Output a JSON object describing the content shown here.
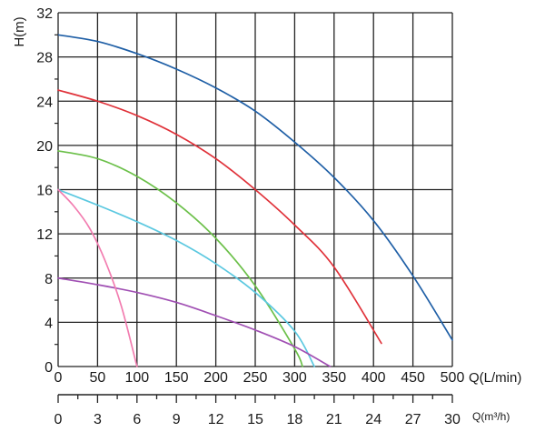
{
  "chart_data": {
    "type": "line",
    "title": "",
    "ylabel": "H(m)",
    "xlabel": "Q(L/min)",
    "x2label": "Q(m³/h)",
    "ylim": [
      0,
      32
    ],
    "xlim": [
      0,
      500
    ],
    "x2lim": [
      0,
      30
    ],
    "grid": true,
    "y_ticks": [
      "0",
      "4",
      "8",
      "12",
      "16",
      "20",
      "24",
      "28",
      "32"
    ],
    "x_ticks": [
      "0",
      "50",
      "100",
      "150",
      "200",
      "250",
      "300",
      "350",
      "400",
      "450",
      "500"
    ],
    "x2_ticks": [
      "0",
      "3",
      "6",
      "9",
      "12",
      "15",
      "18",
      "21",
      "24",
      "27",
      "30"
    ],
    "series": [
      {
        "color": "#1f5fa6",
        "x": [
          0,
          50,
          100,
          150,
          200,
          250,
          300,
          350,
          400,
          450,
          500
        ],
        "y": [
          30,
          29.4,
          28.3,
          26.9,
          25.2,
          23.1,
          20.3,
          17.1,
          13.2,
          8.2,
          2.4
        ]
      },
      {
        "color": "#e0323a",
        "x": [
          0,
          50,
          100,
          150,
          200,
          250,
          300,
          350,
          410
        ],
        "y": [
          25,
          24,
          22.7,
          21,
          18.8,
          16,
          12.8,
          9,
          2.1
        ]
      },
      {
        "color": "#6cc04a",
        "x": [
          0,
          50,
          100,
          150,
          200,
          250,
          300,
          310
        ],
        "y": [
          19.5,
          18.8,
          17.2,
          14.8,
          11.6,
          7.3,
          1.6,
          0
        ]
      },
      {
        "color": "#5bc8e0",
        "x": [
          0,
          50,
          100,
          150,
          200,
          250,
          300,
          325
        ],
        "y": [
          16,
          14.6,
          13.1,
          11.4,
          9.3,
          6.7,
          3.2,
          0
        ]
      },
      {
        "color": "#a04fb3",
        "x": [
          0,
          50,
          100,
          150,
          200,
          250,
          300,
          345
        ],
        "y": [
          8,
          7.4,
          6.7,
          5.8,
          4.6,
          3.3,
          1.8,
          0
        ]
      },
      {
        "color": "#f27db0",
        "x": [
          0,
          20,
          40,
          60,
          80,
          100
        ],
        "y": [
          16,
          14.5,
          12.5,
          9.5,
          5.5,
          0
        ]
      }
    ]
  }
}
